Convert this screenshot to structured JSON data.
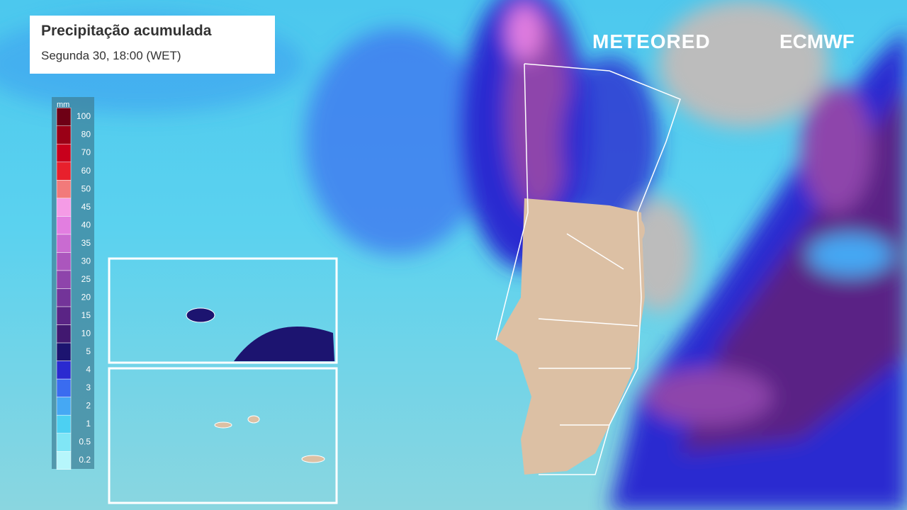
{
  "header": {
    "title": "Precipitação acumulada",
    "subtitle": "Segunda 30, 18:00 (WET)"
  },
  "logos": {
    "left": "METEORED",
    "right": "ECMWF"
  },
  "legend": {
    "unit": "mm",
    "steps": [
      {
        "value": 100,
        "color": "#6e0015"
      },
      {
        "value": 80,
        "color": "#9a0016"
      },
      {
        "value": 70,
        "color": "#c8001c"
      },
      {
        "value": 60,
        "color": "#e8202c"
      },
      {
        "value": 50,
        "color": "#f27a7a"
      },
      {
        "value": 45,
        "color": "#f59be6"
      },
      {
        "value": 40,
        "color": "#e27ee0"
      },
      {
        "value": 35,
        "color": "#c96bd1"
      },
      {
        "value": 30,
        "color": "#ab56bd"
      },
      {
        "value": 25,
        "color": "#8e44ab"
      },
      {
        "value": 20,
        "color": "#733499"
      },
      {
        "value": 15,
        "color": "#5a2485"
      },
      {
        "value": 10,
        "color": "#411870"
      },
      {
        "value": 5,
        "color": "#1c1470"
      },
      {
        "value": 4,
        "color": "#2a2ad0"
      },
      {
        "value": 3,
        "color": "#3a6cf0"
      },
      {
        "value": 2,
        "color": "#45a8f4"
      },
      {
        "value": 1,
        "color": "#4cd0f2"
      },
      {
        "value": 0.5,
        "color": "#80e6f6"
      },
      {
        "value": 0.2,
        "color": "#b6f6fb"
      }
    ]
  }
}
